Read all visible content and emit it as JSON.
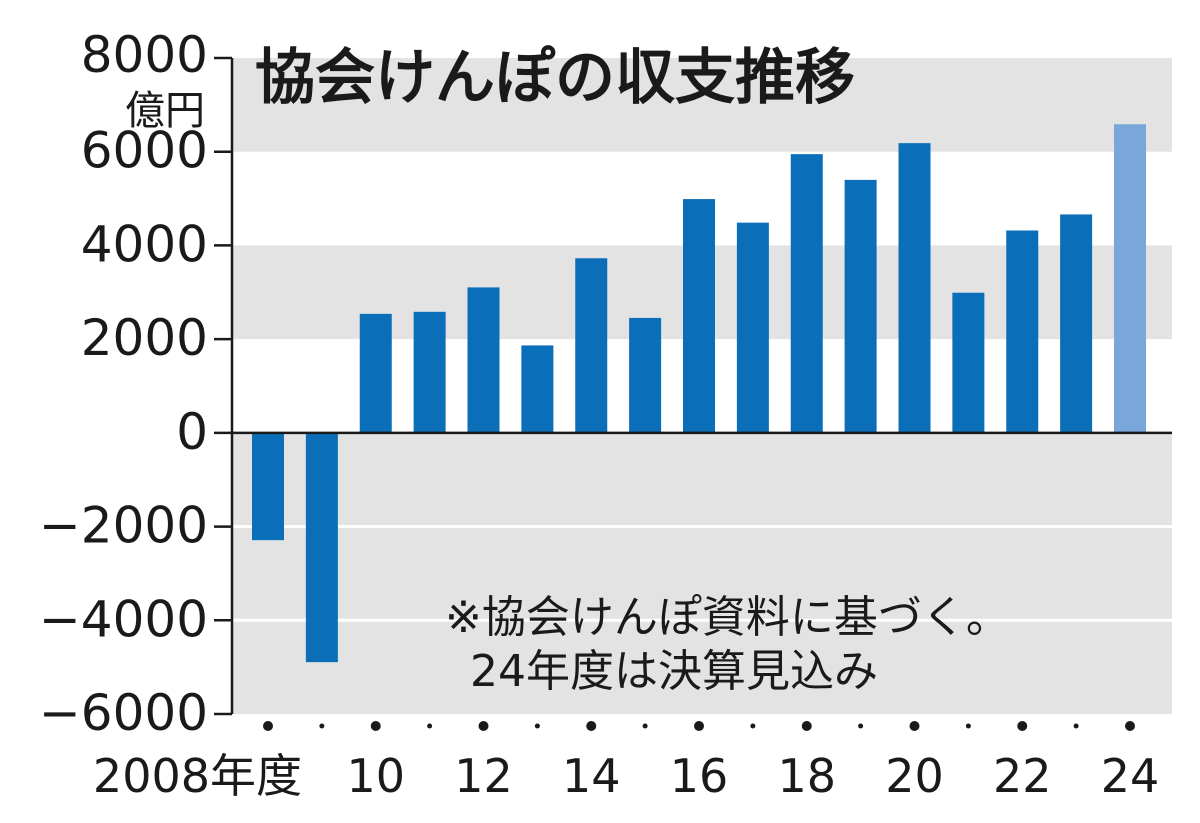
{
  "chart_data": {
    "type": "bar",
    "title": "協会けんぽの収支推移",
    "ylabel": "億円",
    "xlabel": "",
    "ylim": [
      -6000,
      8000
    ],
    "yticks": [
      8000,
      6000,
      4000,
      2000,
      0,
      -2000,
      -4000,
      -6000
    ],
    "ytick_labels": [
      "8000",
      "6000",
      "4000",
      "2000",
      "0",
      "−2000",
      "−4000",
      "−6000"
    ],
    "categories": [
      "2008",
      "2009",
      "2010",
      "2011",
      "2012",
      "2013",
      "2014",
      "2015",
      "2016",
      "2017",
      "2018",
      "2019",
      "2020",
      "2021",
      "2022",
      "2023",
      "2024"
    ],
    "xtick_labels": [
      "2008年度",
      "",
      "10",
      "",
      "12",
      "",
      "14",
      "",
      "16",
      "",
      "18",
      "",
      "20",
      "",
      "22",
      "",
      "24"
    ],
    "values": [
      -2290,
      -4893,
      2540,
      2583,
      3104,
      1866,
      3726,
      2453,
      4989,
      4486,
      5948,
      5399,
      6183,
      2991,
      4319,
      4662,
      6586
    ],
    "estimated": [
      false,
      false,
      false,
      false,
      false,
      false,
      false,
      false,
      false,
      false,
      false,
      false,
      false,
      false,
      false,
      false,
      true
    ],
    "colors": {
      "actual": "#0a6fb8",
      "estimate": "#7aa7da",
      "band": "#e3e3e3"
    },
    "grid": true,
    "annotation": [
      "※協会けんぽ資料に基づく。",
      "24年度は決算見込み"
    ]
  }
}
